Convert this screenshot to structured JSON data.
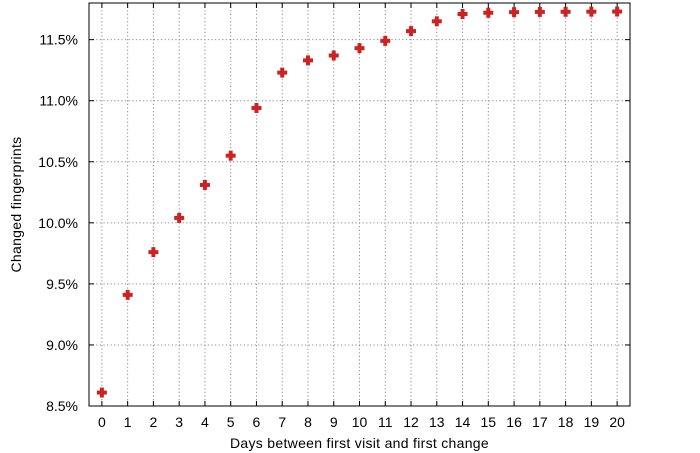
{
  "chart_data": {
    "type": "scatter",
    "title": "",
    "xlabel": "Days between first visit and first change",
    "ylabel": "Changed fingerprints",
    "xlim": [
      -0.5,
      20.5
    ],
    "ylim": [
      8.5,
      11.8
    ],
    "xticks": [
      0,
      1,
      2,
      3,
      4,
      5,
      6,
      7,
      8,
      9,
      10,
      11,
      12,
      13,
      14,
      15,
      16,
      17,
      18,
      19,
      20
    ],
    "xtick_labels": [
      "0",
      "1",
      "2",
      "3",
      "4",
      "5",
      "6",
      "7",
      "8",
      "9",
      "10",
      "11",
      "12",
      "13",
      "14",
      "15",
      "16",
      "17",
      "18",
      "19",
      "20"
    ],
    "yticks": [
      8.5,
      9.0,
      9.5,
      10.0,
      10.5,
      11.0,
      11.5
    ],
    "ytick_labels": [
      "8.5%",
      "9.0%",
      "9.5%",
      "10.0%",
      "10.5%",
      "11.0%",
      "11.5%"
    ],
    "grid": true,
    "marker": "plus",
    "marker_color": "#cc2222",
    "series": [
      {
        "x": [
          0,
          1,
          2,
          3,
          4,
          5,
          6,
          7,
          8,
          9,
          10,
          11,
          12,
          13,
          14,
          15,
          16,
          17,
          18,
          19,
          20
        ],
        "y": [
          8.61,
          9.41,
          9.76,
          10.04,
          10.31,
          10.55,
          10.94,
          11.23,
          11.33,
          11.37,
          11.43,
          11.49,
          11.57,
          11.65,
          11.71,
          11.72,
          11.725,
          11.727,
          11.728,
          11.729,
          11.73
        ]
      }
    ]
  }
}
